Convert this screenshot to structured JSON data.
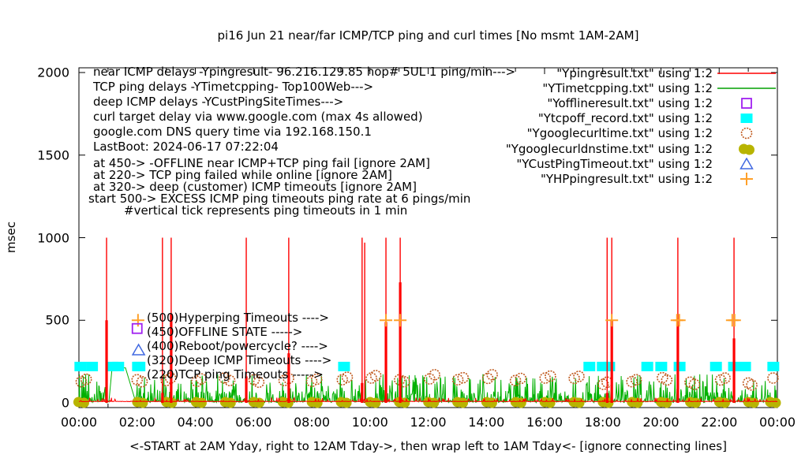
{
  "title": "pi16 Jun 21  near/far ICMP/TCP ping and curl times [No msmt 1AM-2AM]",
  "y_axis": {
    "label": "msec",
    "ticks": [
      "0",
      "500",
      "1000",
      "1500",
      "2000"
    ],
    "values": [
      0,
      500,
      1000,
      1500,
      2000
    ],
    "range": [
      0,
      2000
    ]
  },
  "x_axis": {
    "label": "<-START at 2AM Yday, right to 12AM Tday->, then wrap left to 1AM Tday<- [ignore connecting lines]",
    "ticks": [
      "00:00",
      "02:00",
      "04:00",
      "06:00",
      "08:00",
      "10:00",
      "12:00",
      "14:00",
      "16:00",
      "18:00",
      "20:00",
      "22:00",
      "00:00"
    ],
    "tick_hours": [
      0,
      2,
      4,
      6,
      8,
      10,
      12,
      14,
      16,
      18,
      20,
      22,
      24
    ],
    "minor_tick_every_hours": 1,
    "range_hours": [
      0,
      24
    ]
  },
  "notes_top_left": [
    "near ICMP delays -Ypingresult- 96.216.129.85 hop# 5UL 1 ping/min--->",
    "TCP ping delays -YTimetcpping- Top100Web--->",
    "deep ICMP delays -YCustPingSiteTimes--->",
    "curl target delay via www.google.com (max 4s allowed)",
    "google.com DNS query time via 192.168.150.1",
    "LastBoot: 2024-06-17 07:22:04",
    "at 450-> -OFFLINE near ICMP+TCP ping fail [ignore 2AM]",
    "at 220-> TCP ping failed while online [ignore 2AM]",
    "at 320-> deep (customer) ICMP timeouts [ignore 2AM]",
    "start 500-> EXCESS ICMP ping timeouts ping rate at 6 pings/min",
    "#vertical tick represents ping timeouts in 1 min"
  ],
  "legend": {
    "entries": [
      {
        "label": "\"Ypingresult.txt\" using 1:2",
        "marker": "line",
        "color": "#ff0000"
      },
      {
        "label": "\"YTimetcpping.txt\" using 1:2",
        "marker": "line",
        "color": "#00a000"
      },
      {
        "label": "\"Yofflineresult.txt\" using 1:2",
        "marker": "open-square",
        "color": "#a020f0"
      },
      {
        "label": "\"Ytcpoff_record.txt\" using 1:2",
        "marker": "filled-square",
        "color": "#00ffff"
      },
      {
        "label": "\"Ygooglecurltime.txt\" using 1:2",
        "marker": "open-circle",
        "color": "#c05a1e"
      },
      {
        "label": "\"Ygooglecurldnstime.txt\" using 1:2",
        "marker": "filled-circle",
        "color": "#b8b400"
      },
      {
        "label": "\"YCustPingTimeout.txt\" using 1:2",
        "marker": "open-triangle",
        "color": "#4169e1"
      },
      {
        "label": "\"YHPpingresult.txt\" using 1:2",
        "marker": "plus",
        "color": "#ffa028"
      }
    ]
  },
  "inplot_annotations": [
    {
      "marker": "plus",
      "color": "#ffa028",
      "value_msec": 500,
      "marker_hour": 2.03,
      "label": "(500)Hyperping Timeouts ---->"
    },
    {
      "marker": "open-square",
      "color": "#a020f0",
      "value_msec": 450,
      "marker_hour": 2.0,
      "label": "(450)OFFLINE STATE ----->"
    },
    {
      "marker": "none",
      "color": "#000000",
      "value_msec": 400,
      "marker_hour": 2.0,
      "label": "(400)Reboot/powercycle? ---->"
    },
    {
      "marker": "open-triangle",
      "color": "#4169e1",
      "value_msec": 320,
      "marker_hour": 2.05,
      "label": "(320)Deep ICMP Timeouts ---->"
    },
    {
      "marker": "filled-square",
      "color": "#00ffff",
      "value_msec": 220,
      "marker_hour": 2.08,
      "label": "(220)TCP ping Timeouts ----->"
    }
  ],
  "chart_data": {
    "type": "line",
    "title": "pi16 Jun 21  near/far ICMP/TCP ping and curl times [No msmt 1AM-2AM]",
    "xlabel": "<-START at 2AM Yday, right to 12AM Tday->, then wrap left to 1AM Tday<- [ignore connecting lines]",
    "ylabel": "msec",
    "x_unit": "hour-of-day",
    "xlim_hours": [
      0,
      24
    ],
    "ylim": [
      0,
      2000
    ],
    "grid": false,
    "legend_position": "top-right",
    "no_measurement_window": "1AM-2AM",
    "series": [
      {
        "name": "\"Ypingresult.txt\" using 1:2",
        "color": "#ff0000",
        "style": "line-with-vertical-spikes",
        "baseline_msec": 8,
        "spikes": [
          {
            "h": 0.95,
            "peak": 1000,
            "thick_to": 500
          },
          {
            "h": 2.87,
            "peak": 1000,
            "thick_to": 60
          },
          {
            "h": 3.17,
            "peak": 1000,
            "thick_to": 540
          },
          {
            "h": 5.75,
            "peak": 1000,
            "thick_to": 160
          },
          {
            "h": 7.21,
            "peak": 1000,
            "thick_to": 300
          },
          {
            "h": 9.73,
            "peak": 1000,
            "thick_to": 120
          },
          {
            "h": 9.82,
            "peak": 970,
            "thick_to": 0
          },
          {
            "h": 10.55,
            "peak": 1000,
            "thick_to": 490
          },
          {
            "h": 11.04,
            "peak": 1000,
            "thick_to": 730
          },
          {
            "h": 18.15,
            "peak": 1000,
            "thick_to": 60
          },
          {
            "h": 18.31,
            "peak": 1000,
            "thick_to": 500
          },
          {
            "h": 20.58,
            "peak": 1000,
            "thick_to": 470
          },
          {
            "h": 22.51,
            "peak": 1000,
            "thick_to": 390
          }
        ]
      },
      {
        "name": "\"YTimetcpping.txt\" using 1:2",
        "color": "#00b000",
        "style": "noisy-grass-line",
        "base_msec": 4,
        "typical_spike_max_msec": 175,
        "gap_bridge_points": [
          [
            1.03,
            6
          ],
          [
            1.14,
            212
          ],
          [
            1.6,
            212
          ],
          [
            1.95,
            6
          ]
        ]
      },
      {
        "name": "\"Yofflineresult.txt\" using 1:2",
        "color": "#a020f0",
        "marker": "open-square",
        "points": []
      },
      {
        "name": "\"Ytcpoff_record.txt\" using 1:2",
        "color": "#00ffff",
        "marker": "filled-square",
        "value_msec": 220,
        "points_h": [
          0.05,
          0.45,
          1.15,
          1.35,
          2.03,
          9.11,
          17.54,
          18.0,
          18.22,
          19.53,
          20.01,
          20.64,
          21.89,
          22.51,
          22.89,
          23.86
        ]
      },
      {
        "name": "\"Ygooglecurltime.txt\" using 1:2",
        "color": "#c05a1e",
        "marker": "open-circle",
        "points": [
          [
            0.08,
            128
          ],
          [
            0.25,
            143
          ],
          [
            2.0,
            140
          ],
          [
            2.17,
            128
          ],
          [
            3.0,
            135
          ],
          [
            3.15,
            150
          ],
          [
            4.05,
            130
          ],
          [
            4.2,
            145
          ],
          [
            5.0,
            150
          ],
          [
            5.18,
            135
          ],
          [
            6.02,
            140
          ],
          [
            6.18,
            125
          ],
          [
            7.05,
            135
          ],
          [
            7.2,
            148
          ],
          [
            8.0,
            130
          ],
          [
            8.17,
            143
          ],
          [
            9.05,
            140
          ],
          [
            9.22,
            155
          ],
          [
            10.05,
            150
          ],
          [
            10.2,
            165
          ],
          [
            11.02,
            140
          ],
          [
            11.18,
            128
          ],
          [
            12.05,
            145
          ],
          [
            12.22,
            170
          ],
          [
            13.02,
            140
          ],
          [
            13.2,
            152
          ],
          [
            14.05,
            148
          ],
          [
            14.2,
            170
          ],
          [
            15.0,
            135
          ],
          [
            15.18,
            148
          ],
          [
            16.02,
            150
          ],
          [
            16.2,
            162
          ],
          [
            17.02,
            148
          ],
          [
            17.18,
            160
          ],
          [
            18.02,
            112
          ],
          [
            18.15,
            125
          ],
          [
            19.0,
            128
          ],
          [
            19.15,
            140
          ],
          [
            20.05,
            152
          ],
          [
            20.2,
            138
          ],
          [
            21.0,
            125
          ],
          [
            21.15,
            112
          ],
          [
            22.05,
            138
          ],
          [
            22.2,
            150
          ],
          [
            23.0,
            120
          ],
          [
            23.12,
            108
          ],
          [
            23.85,
            150
          ]
        ]
      },
      {
        "name": "\"Ygooglecurldnstime.txt\" using 1:2",
        "color": "#b8b400",
        "marker": "filled-circle",
        "value_msec": 5,
        "points_h": [
          0.08,
          2.1,
          3.1,
          4.12,
          5.12,
          6.1,
          7.1,
          8.1,
          9.1,
          10.1,
          11.1,
          12.1,
          13.1,
          14.1,
          15.1,
          16.1,
          17.1,
          18.1,
          19.1,
          20.1,
          21.1,
          22.1,
          23.1,
          23.85
        ]
      },
      {
        "name": "\"YCustPingTimeout.txt\" using 1:2",
        "color": "#4169e1",
        "marker": "open-triangle",
        "points": []
      },
      {
        "name": "\"YHPpingresult.txt\" using 1:2",
        "color": "#ffa028",
        "marker": "plus",
        "value_msec": 500,
        "points_h": [
          10.55,
          11.04,
          18.31,
          20.55,
          20.63,
          22.45,
          22.53
        ]
      }
    ]
  }
}
